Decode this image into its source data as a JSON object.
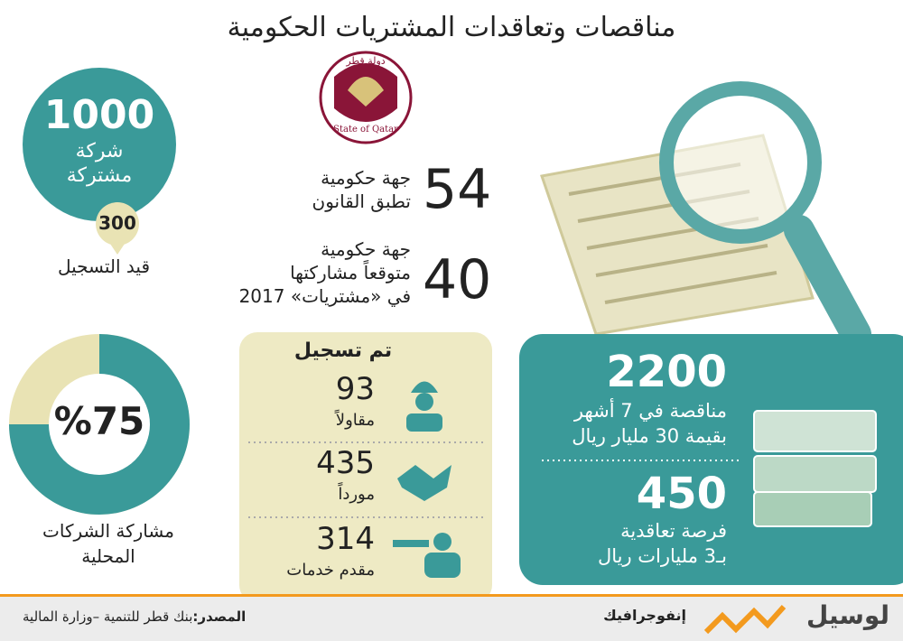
{
  "header": {
    "title": "مناقصات وتعاقدات المشتريات الحكومية"
  },
  "emblem": {
    "arabic": "دولة قطر",
    "english": "State of Qatar"
  },
  "companies": {
    "count": "1000",
    "line1": "شركة",
    "line2": "مشتركة",
    "pending": "300",
    "pending_label": "قيد التسجيل"
  },
  "entities": [
    {
      "number": "54",
      "lines": [
        "جهة حكومية",
        "تطبق القانون"
      ]
    },
    {
      "number": "40",
      "lines": [
        "جهة حكومية",
        "متوقعاً مشاركتها",
        "في «مشتريات» 2017"
      ]
    }
  ],
  "registered": {
    "title": "تم تسجيل",
    "rows": [
      {
        "number": "93",
        "label": "مقاولاً"
      },
      {
        "number": "435",
        "label": "مورداً"
      },
      {
        "number": "314",
        "label": "مقدم خدمات"
      }
    ]
  },
  "tenders": [
    {
      "number": "2200",
      "lines": [
        "مناقصة في 7 أشهر",
        "بقيمة 30 مليار ريال"
      ]
    },
    {
      "number": "450",
      "lines": [
        "فرصة تعاقدية",
        "بـ3 مليارات ريال"
      ]
    }
  ],
  "participation": {
    "value": 75,
    "label": "%75",
    "lines": [
      "مشاركة الشركات",
      "المحلية"
    ]
  },
  "footer": {
    "source_label": "المصدر:",
    "source": "بنك قطر للتنمية –وزارة المالية",
    "section": "إنفوجرافيك",
    "brand": "لوسيل"
  }
}
